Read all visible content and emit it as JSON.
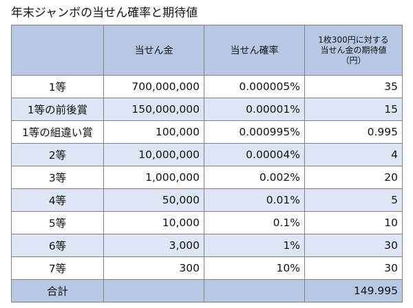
{
  "title": "年末ジャンボの当せん確率と期待値",
  "table": {
    "headers": {
      "prize_amount": "当せん金",
      "probability": "当せん確率",
      "expected_line1": "1枚300円に対する",
      "expected_line2": "当せん金の期待値",
      "expected_line3": "（円）"
    },
    "rows": [
      {
        "prize": "1等",
        "amount": "700,000,000",
        "probability": "0.000005%",
        "expected": "35"
      },
      {
        "prize": "1等の前後賞",
        "amount": "150,000,000",
        "probability": "0.00001%",
        "expected": "15"
      },
      {
        "prize": "1等の組違い賞",
        "amount": "100,000",
        "probability": "0.000995%",
        "expected": "0.995"
      },
      {
        "prize": "2等",
        "amount": "10,000,000",
        "probability": "0.00004%",
        "expected": "4"
      },
      {
        "prize": "3等",
        "amount": "1,000,000",
        "probability": "0.002%",
        "expected": "20"
      },
      {
        "prize": "4等",
        "amount": "50,000",
        "probability": "0.01%",
        "expected": "5"
      },
      {
        "prize": "5等",
        "amount": "10,000",
        "probability": "0.1%",
        "expected": "10"
      },
      {
        "prize": "6等",
        "amount": "3,000",
        "probability": "1%",
        "expected": "30"
      },
      {
        "prize": "7等",
        "amount": "300",
        "probability": "10%",
        "expected": "30"
      }
    ],
    "total": {
      "label": "合計",
      "expected": "149.995"
    }
  },
  "colors": {
    "header_bg": "#b7c8e4",
    "stripe_bg": "#dce6f4",
    "border": "#808080"
  }
}
